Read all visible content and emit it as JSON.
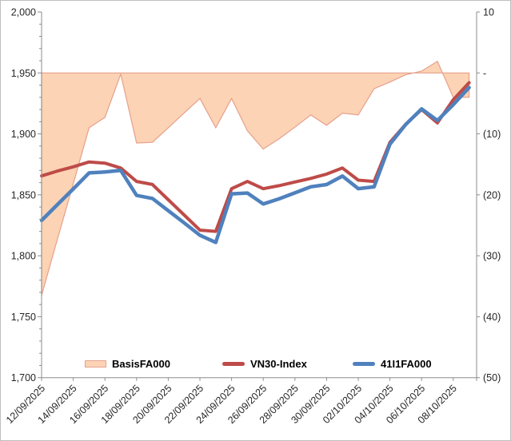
{
  "chart_data": {
    "type": "combo-line-area",
    "categories": [
      "12/09/2025",
      "13/09/2025",
      "14/09/2025",
      "15/09/2025",
      "16/09/2025",
      "17/09/2025",
      "18/09/2025",
      "19/09/2025",
      "20/09/2025",
      "21/09/2025",
      "22/09/2025",
      "23/09/2025",
      "24/09/2025",
      "25/09/2025",
      "26/09/2025",
      "27/09/2025",
      "28/09/2025",
      "29/09/2025",
      "30/09/2025",
      "01/10/2025",
      "02/10/2025",
      "03/10/2025",
      "04/10/2025",
      "05/10/2025",
      "06/10/2025",
      "07/10/2025",
      "08/10/2025",
      "09/10/2025"
    ],
    "x_label_every": 2,
    "series": [
      {
        "name": "BasisFA000",
        "type": "area",
        "axis": "right",
        "values": [
          -36.5,
          -27.3,
          -18.2,
          -9,
          -7.3,
          -0.2,
          -11.5,
          -11.4,
          -9,
          -6.6,
          -4.2,
          -9,
          -4.2,
          -9.5,
          -12.5,
          -10.8,
          -8.9,
          -6.9,
          -8.6,
          -6.6,
          -6.9,
          -2.6,
          -1.5,
          -0.3,
          0.3,
          1.9,
          -4,
          -4
        ]
      },
      {
        "name": "VN30-Index",
        "type": "line",
        "axis": "left",
        "values": [
          1865.5,
          1869.5,
          1873,
          1877,
          1876,
          1872,
          1861,
          1858.5,
          1846,
          1833.5,
          1821,
          1820,
          1855,
          1861,
          1855,
          1857.5,
          1860.5,
          1863.5,
          1867,
          1872,
          1862,
          1861,
          1893,
          1908,
          1920,
          1909,
          1928,
          1942
        ]
      },
      {
        "name": "41I1FA000",
        "type": "line",
        "axis": "left",
        "values": [
          1829,
          1842,
          1854.8,
          1868,
          1868.7,
          1870,
          1849.5,
          1847,
          1837,
          1827,
          1816.8,
          1811,
          1850.8,
          1851.5,
          1842.5,
          1846.7,
          1851.6,
          1856.6,
          1858.4,
          1865.4,
          1855.1,
          1856.5,
          1891.5,
          1907.7,
          1920.5,
          1911,
          1924,
          1938
        ]
      }
    ],
    "left_axis": {
      "min": 1700,
      "max": 2000,
      "step": 50,
      "minor_step": 10,
      "labels": [
        "2,000",
        "1,950",
        "1,900",
        "1,850",
        "1,800",
        "1,750",
        "1,700"
      ]
    },
    "right_axis": {
      "min": -50,
      "max": 10,
      "step": 10,
      "labels": [
        "10",
        "-",
        "(10)",
        "(20)",
        "(30)",
        "(40)",
        "(50)"
      ],
      "zero_at_left_value": 1950,
      "left_points_per_unit": 5
    },
    "legend": [
      "BasisFA000",
      "VN30-Index",
      "41I1FA000"
    ],
    "colors": {
      "area_fill": "#FCD3B4",
      "area_stroke": "#E6A08D",
      "vn30_line": "#BE4B48",
      "f41i1_line": "#4F81BD",
      "axis_line": "#8C8C8C",
      "label_text": "#262626"
    }
  }
}
